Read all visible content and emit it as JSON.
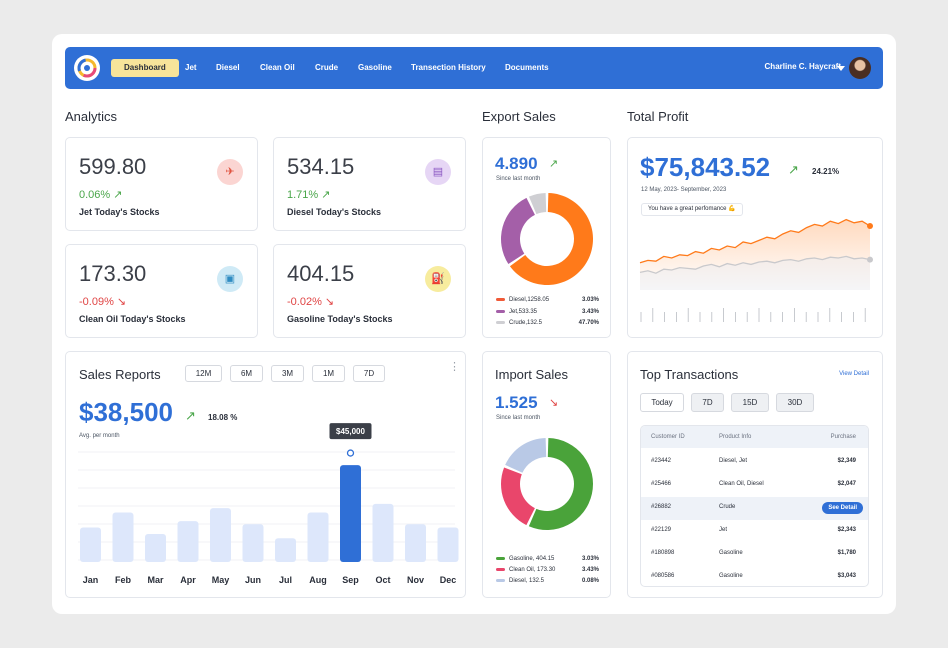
{
  "nav": {
    "items": [
      {
        "label": "Dashboard",
        "active": true
      },
      {
        "label": "Jet"
      },
      {
        "label": "Diesel"
      },
      {
        "label": "Clean Oil"
      },
      {
        "label": "Crude"
      },
      {
        "label": "Gasoline"
      },
      {
        "label": "Transection History"
      },
      {
        "label": "Documents"
      }
    ],
    "user_name": "Charline C. Haycraft"
  },
  "analytics": {
    "title": "Analytics",
    "cards": [
      {
        "value": "599.80",
        "change": "0.06%",
        "label": "Jet Today's Stocks",
        "trend": "up",
        "icon": "airplane-icon"
      },
      {
        "value": "534.15",
        "change": "1.71%",
        "label": "Diesel Today's Stocks",
        "trend": "up",
        "icon": "barrel-icon"
      },
      {
        "value": "173.30",
        "change": "-0.09%",
        "label": "Clean Oil Today's Stocks",
        "trend": "down",
        "icon": "calendar-icon"
      },
      {
        "value": "404.15",
        "change": "-0.02%",
        "label": "Gasoline Today's Stocks",
        "trend": "down",
        "icon": "fuel-pump-icon"
      }
    ]
  },
  "export_sales": {
    "title": "Export Sales",
    "value": "4.890",
    "sub": "Since last month",
    "legend": [
      {
        "label": "Diesel,1258.05",
        "value": "3.03%",
        "color": "#f05a38"
      },
      {
        "label": "Jet,533.35",
        "value": "3.43%",
        "color": "#a45fa8"
      },
      {
        "label": "Crude,132.5",
        "value": "47.70%",
        "color": "#cfcfd3"
      }
    ]
  },
  "import_sales": {
    "title": "Import Sales",
    "value": "1.525",
    "sub": "Since last month",
    "legend": [
      {
        "label": "Gasoline, 404.15",
        "value": "3.03%",
        "color": "#4aa33a"
      },
      {
        "label": "Clean Oil, 173.30",
        "value": "3.43%",
        "color": "#e9466b"
      },
      {
        "label": "Diesel, 132.5",
        "value": "0.08%",
        "color": "#b9c9e6"
      }
    ]
  },
  "total_profit": {
    "title": "Total Profit",
    "value": "$75,843.52",
    "change": "24.21%",
    "range": "12 May, 2023- September, 2023",
    "note": "You have a great perfomance 💪"
  },
  "sales_reports": {
    "title": "Sales Reports",
    "filters": [
      "12M",
      "6M",
      "3M",
      "1M",
      "7D"
    ],
    "value": "$38,500",
    "change": "18.08 %",
    "sub": "Avg. per month",
    "tooltip": "$45,000"
  },
  "top_transactions": {
    "title": "Top Transactions",
    "view_detail": "View Detail",
    "filters": [
      "Today",
      "7D",
      "15D",
      "30D"
    ],
    "columns": [
      "Customer ID",
      "Product Info",
      "Purchase"
    ],
    "rows": [
      {
        "id": "#23442",
        "product": "Diesel, Jet",
        "purchase": "$2,349"
      },
      {
        "id": "#25466",
        "product": "Clean Oil, Diesel",
        "purchase": "$2,047"
      },
      {
        "id": "#26882",
        "product": "Crude",
        "purchase": "See Detail",
        "highlight": true
      },
      {
        "id": "#22129",
        "product": "Jet",
        "purchase": "$2,343"
      },
      {
        "id": "#180898",
        "product": "Gasoline",
        "purchase": "$1,780"
      },
      {
        "id": "#080586",
        "product": "Gasoline",
        "purchase": "$3,043"
      }
    ]
  },
  "chart_data": [
    {
      "type": "bar",
      "categories": [
        "Jan",
        "Feb",
        "Mar",
        "Apr",
        "May",
        "Jun",
        "Jul",
        "Aug",
        "Sep",
        "Oct",
        "Nov",
        "Dec"
      ],
      "values": [
        16000,
        23000,
        13000,
        19000,
        25000,
        17500,
        11000,
        23000,
        45000,
        27000,
        17500,
        16000
      ],
      "highlight": "Sep",
      "ylim": [
        0,
        52000
      ],
      "grid": true,
      "colors": {
        "bar": "#dde7fb",
        "highlight": "#2f6fd6"
      }
    },
    {
      "type": "line",
      "x": [
        1,
        2,
        3,
        4,
        5,
        6,
        7,
        8,
        9,
        10,
        11,
        12,
        13,
        14,
        15,
        16,
        17,
        18,
        19,
        20,
        21,
        22,
        23,
        24,
        25,
        26,
        27,
        28,
        29,
        30
      ],
      "series": [
        {
          "values": [
            34,
            37,
            36,
            42,
            40,
            44,
            43,
            48,
            46,
            52,
            50,
            55,
            53,
            60,
            58,
            62,
            66,
            64,
            70,
            74,
            72,
            78,
            82,
            80,
            86,
            83,
            88,
            84,
            86,
            80
          ],
          "color": "#ff7a1a"
        },
        {
          "values": [
            22,
            24,
            21,
            26,
            25,
            28,
            27,
            26,
            30,
            32,
            29,
            33,
            31,
            34,
            32,
            35,
            36,
            34,
            37,
            38,
            36,
            39,
            40,
            38,
            41,
            40,
            42,
            39,
            40,
            38
          ],
          "color": "#c9c9cc"
        }
      ],
      "ylim": [
        0,
        100
      ],
      "grid": false,
      "legend": "none"
    },
    {
      "type": "pie",
      "categories": [
        "Diesel",
        "Jet",
        "Crude"
      ],
      "values": [
        1258.05,
        533.35,
        132.5
      ],
      "donut": true,
      "colors": [
        "#ff7a1a",
        "#a45fa8",
        "#cfcfd3"
      ]
    },
    {
      "type": "pie",
      "categories": [
        "Gasoline",
        "Clean Oil",
        "Diesel"
      ],
      "values": [
        404.15,
        173.3,
        132.5
      ],
      "donut": true,
      "colors": [
        "#4aa33a",
        "#e9466b",
        "#b9c9e6"
      ]
    }
  ]
}
